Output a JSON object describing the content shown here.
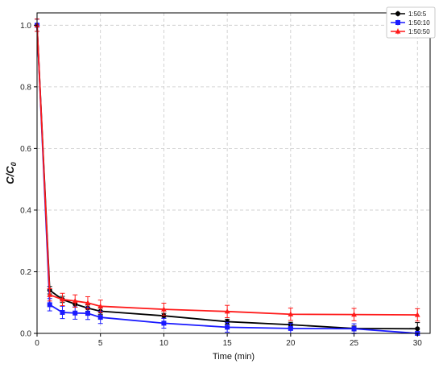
{
  "chart_data": {
    "type": "line",
    "title": "",
    "xlabel": "Time (min)",
    "ylabel_main": "C/C",
    "ylabel_sub": "0",
    "xlim": [
      0,
      31
    ],
    "ylim": [
      0,
      1.04
    ],
    "xticks": [
      0,
      5,
      10,
      15,
      20,
      25,
      30
    ],
    "yticks": [
      0.0,
      0.2,
      0.4,
      0.6,
      0.8,
      1.0
    ],
    "ytick_labels": [
      "0.0",
      "0.2",
      "0.4",
      "0.6",
      "0.8",
      "1.0"
    ],
    "grid": true,
    "legend_position": "top-right",
    "x": [
      0,
      1,
      2,
      3,
      4,
      5,
      10,
      15,
      20,
      25,
      30
    ],
    "series": [
      {
        "name": "1:50:5",
        "color": "#000000",
        "marker": "circle",
        "values": [
          1.0,
          0.14,
          0.11,
          0.095,
          0.082,
          0.072,
          0.057,
          0.038,
          0.028,
          0.016,
          0.015
        ],
        "errors": [
          0.02,
          0.012,
          0.01,
          0.01,
          0.01,
          0.01,
          0.008,
          0.008,
          0.008,
          0.008,
          0.02
        ]
      },
      {
        "name": "1:50:10",
        "color": "#1a1aff",
        "marker": "square",
        "values": [
          1.0,
          0.093,
          0.068,
          0.066,
          0.065,
          0.052,
          0.033,
          0.02,
          0.016,
          0.015,
          0.0
        ],
        "errors": [
          0.02,
          0.02,
          0.02,
          0.02,
          0.02,
          0.02,
          0.016,
          0.016,
          0.016,
          0.016,
          0.005
        ]
      },
      {
        "name": "1:50:50",
        "color": "#ff1a1a",
        "marker": "triangle",
        "values": [
          1.0,
          0.125,
          0.11,
          0.105,
          0.099,
          0.088,
          0.078,
          0.071,
          0.062,
          0.061,
          0.06
        ],
        "errors": [
          0.02,
          0.02,
          0.02,
          0.02,
          0.02,
          0.02,
          0.02,
          0.02,
          0.02,
          0.02,
          0.02
        ]
      }
    ]
  }
}
